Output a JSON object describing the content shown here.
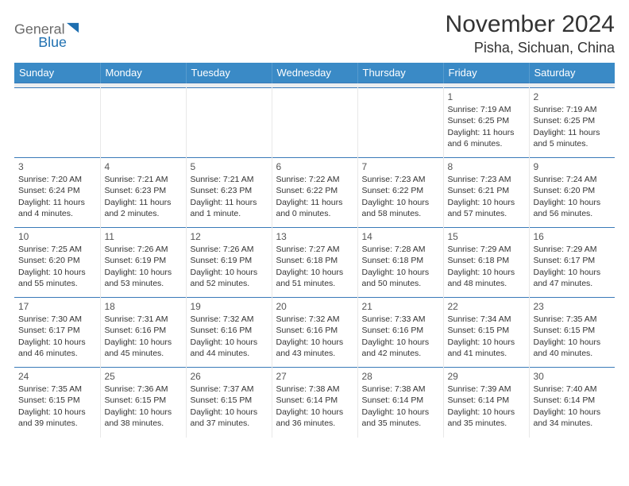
{
  "brand": {
    "name_part1": "General",
    "name_part2": "Blue",
    "text_color": "#6a6a6a",
    "accent_color": "#1e6fb0"
  },
  "header": {
    "month_title": "November 2024",
    "location": "Pisha, Sichuan, China",
    "title_color": "#333333"
  },
  "calendar": {
    "header_bg": "#3a8ac6",
    "header_text_color": "#ffffff",
    "row_border_color": "#3a7ab8",
    "spacer_bg": "#eceff1",
    "day_labels": [
      "Sunday",
      "Monday",
      "Tuesday",
      "Wednesday",
      "Thursday",
      "Friday",
      "Saturday"
    ],
    "weeks": [
      [
        null,
        null,
        null,
        null,
        null,
        {
          "n": "1",
          "sunrise": "Sunrise: 7:19 AM",
          "sunset": "Sunset: 6:25 PM",
          "daylight": "Daylight: 11 hours and 6 minutes."
        },
        {
          "n": "2",
          "sunrise": "Sunrise: 7:19 AM",
          "sunset": "Sunset: 6:25 PM",
          "daylight": "Daylight: 11 hours and 5 minutes."
        }
      ],
      [
        {
          "n": "3",
          "sunrise": "Sunrise: 7:20 AM",
          "sunset": "Sunset: 6:24 PM",
          "daylight": "Daylight: 11 hours and 4 minutes."
        },
        {
          "n": "4",
          "sunrise": "Sunrise: 7:21 AM",
          "sunset": "Sunset: 6:23 PM",
          "daylight": "Daylight: 11 hours and 2 minutes."
        },
        {
          "n": "5",
          "sunrise": "Sunrise: 7:21 AM",
          "sunset": "Sunset: 6:23 PM",
          "daylight": "Daylight: 11 hours and 1 minute."
        },
        {
          "n": "6",
          "sunrise": "Sunrise: 7:22 AM",
          "sunset": "Sunset: 6:22 PM",
          "daylight": "Daylight: 11 hours and 0 minutes."
        },
        {
          "n": "7",
          "sunrise": "Sunrise: 7:23 AM",
          "sunset": "Sunset: 6:22 PM",
          "daylight": "Daylight: 10 hours and 58 minutes."
        },
        {
          "n": "8",
          "sunrise": "Sunrise: 7:23 AM",
          "sunset": "Sunset: 6:21 PM",
          "daylight": "Daylight: 10 hours and 57 minutes."
        },
        {
          "n": "9",
          "sunrise": "Sunrise: 7:24 AM",
          "sunset": "Sunset: 6:20 PM",
          "daylight": "Daylight: 10 hours and 56 minutes."
        }
      ],
      [
        {
          "n": "10",
          "sunrise": "Sunrise: 7:25 AM",
          "sunset": "Sunset: 6:20 PM",
          "daylight": "Daylight: 10 hours and 55 minutes."
        },
        {
          "n": "11",
          "sunrise": "Sunrise: 7:26 AM",
          "sunset": "Sunset: 6:19 PM",
          "daylight": "Daylight: 10 hours and 53 minutes."
        },
        {
          "n": "12",
          "sunrise": "Sunrise: 7:26 AM",
          "sunset": "Sunset: 6:19 PM",
          "daylight": "Daylight: 10 hours and 52 minutes."
        },
        {
          "n": "13",
          "sunrise": "Sunrise: 7:27 AM",
          "sunset": "Sunset: 6:18 PM",
          "daylight": "Daylight: 10 hours and 51 minutes."
        },
        {
          "n": "14",
          "sunrise": "Sunrise: 7:28 AM",
          "sunset": "Sunset: 6:18 PM",
          "daylight": "Daylight: 10 hours and 50 minutes."
        },
        {
          "n": "15",
          "sunrise": "Sunrise: 7:29 AM",
          "sunset": "Sunset: 6:18 PM",
          "daylight": "Daylight: 10 hours and 48 minutes."
        },
        {
          "n": "16",
          "sunrise": "Sunrise: 7:29 AM",
          "sunset": "Sunset: 6:17 PM",
          "daylight": "Daylight: 10 hours and 47 minutes."
        }
      ],
      [
        {
          "n": "17",
          "sunrise": "Sunrise: 7:30 AM",
          "sunset": "Sunset: 6:17 PM",
          "daylight": "Daylight: 10 hours and 46 minutes."
        },
        {
          "n": "18",
          "sunrise": "Sunrise: 7:31 AM",
          "sunset": "Sunset: 6:16 PM",
          "daylight": "Daylight: 10 hours and 45 minutes."
        },
        {
          "n": "19",
          "sunrise": "Sunrise: 7:32 AM",
          "sunset": "Sunset: 6:16 PM",
          "daylight": "Daylight: 10 hours and 44 minutes."
        },
        {
          "n": "20",
          "sunrise": "Sunrise: 7:32 AM",
          "sunset": "Sunset: 6:16 PM",
          "daylight": "Daylight: 10 hours and 43 minutes."
        },
        {
          "n": "21",
          "sunrise": "Sunrise: 7:33 AM",
          "sunset": "Sunset: 6:16 PM",
          "daylight": "Daylight: 10 hours and 42 minutes."
        },
        {
          "n": "22",
          "sunrise": "Sunrise: 7:34 AM",
          "sunset": "Sunset: 6:15 PM",
          "daylight": "Daylight: 10 hours and 41 minutes."
        },
        {
          "n": "23",
          "sunrise": "Sunrise: 7:35 AM",
          "sunset": "Sunset: 6:15 PM",
          "daylight": "Daylight: 10 hours and 40 minutes."
        }
      ],
      [
        {
          "n": "24",
          "sunrise": "Sunrise: 7:35 AM",
          "sunset": "Sunset: 6:15 PM",
          "daylight": "Daylight: 10 hours and 39 minutes."
        },
        {
          "n": "25",
          "sunrise": "Sunrise: 7:36 AM",
          "sunset": "Sunset: 6:15 PM",
          "daylight": "Daylight: 10 hours and 38 minutes."
        },
        {
          "n": "26",
          "sunrise": "Sunrise: 7:37 AM",
          "sunset": "Sunset: 6:15 PM",
          "daylight": "Daylight: 10 hours and 37 minutes."
        },
        {
          "n": "27",
          "sunrise": "Sunrise: 7:38 AM",
          "sunset": "Sunset: 6:14 PM",
          "daylight": "Daylight: 10 hours and 36 minutes."
        },
        {
          "n": "28",
          "sunrise": "Sunrise: 7:38 AM",
          "sunset": "Sunset: 6:14 PM",
          "daylight": "Daylight: 10 hours and 35 minutes."
        },
        {
          "n": "29",
          "sunrise": "Sunrise: 7:39 AM",
          "sunset": "Sunset: 6:14 PM",
          "daylight": "Daylight: 10 hours and 35 minutes."
        },
        {
          "n": "30",
          "sunrise": "Sunrise: 7:40 AM",
          "sunset": "Sunset: 6:14 PM",
          "daylight": "Daylight: 10 hours and 34 minutes."
        }
      ]
    ]
  }
}
